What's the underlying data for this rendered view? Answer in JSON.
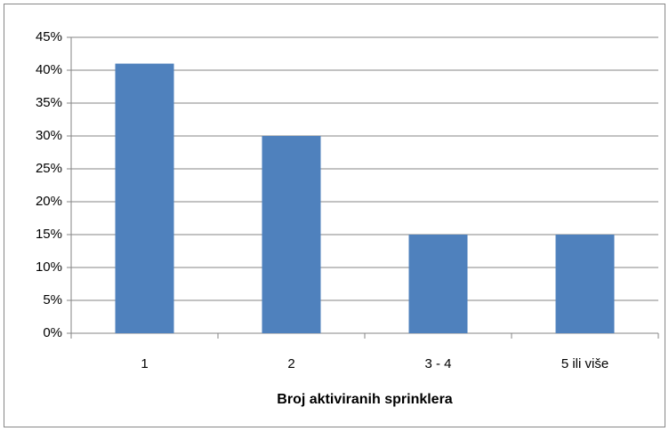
{
  "chart_data": {
    "type": "bar",
    "x_label": "Broj aktiviranih sprinklera",
    "categories": [
      "1",
      "2",
      "3 - 4",
      "5 ili više"
    ],
    "values": [
      41,
      30,
      15,
      15
    ],
    "color": "#4f81bd",
    "ylim": [
      0,
      45
    ],
    "yticks": [
      {
        "value": 0,
        "label": "0%"
      },
      {
        "value": 5,
        "label": "5%"
      },
      {
        "value": 10,
        "label": "10%"
      },
      {
        "value": 15,
        "label": "15%"
      },
      {
        "value": 20,
        "label": "20%"
      },
      {
        "value": 25,
        "label": "25%"
      },
      {
        "value": 30,
        "label": "30%"
      },
      {
        "value": 35,
        "label": "35%"
      },
      {
        "value": 40,
        "label": "40%"
      },
      {
        "value": 45,
        "label": "45%"
      }
    ],
    "grid": true
  }
}
